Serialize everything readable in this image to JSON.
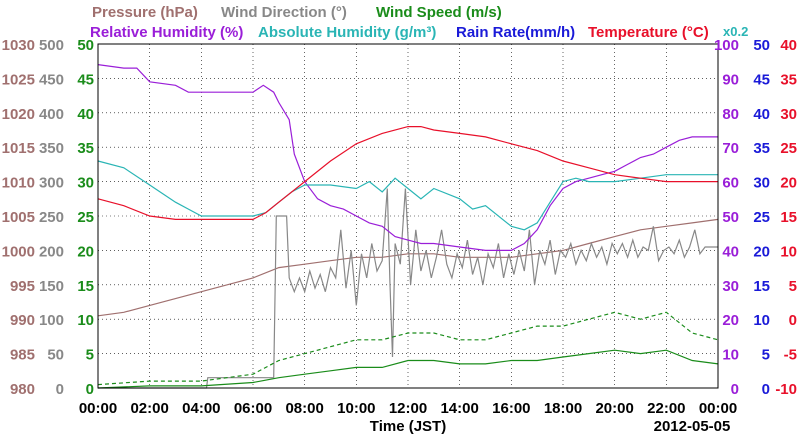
{
  "chart_data": {
    "type": "line",
    "legend": {
      "row1": [
        {
          "key": "pressure",
          "label": "Pressure (hPa)",
          "color": "#a0706f"
        },
        {
          "key": "wind_dir",
          "label": "Wind Direction (°)",
          "color": "#888888"
        },
        {
          "key": "wind_speed",
          "label": "Wind Speed (m/s)",
          "color": "#1a8c1a"
        }
      ],
      "row2": [
        {
          "key": "rel_hum",
          "label": "Relative Humidity (%)",
          "color": "#9a1ed8"
        },
        {
          "key": "abs_hum",
          "label": "Absolute Humidity (g/m³)",
          "color": "#2ab5b5"
        },
        {
          "key": "rain",
          "label": "Rain Rate(mm/h)",
          "color": "#1a1ad8"
        },
        {
          "key": "temp",
          "label": "Temperature (°C)",
          "color": "#e8102a"
        }
      ],
      "abs_hum_scale": "x0.2"
    },
    "xlabel": "Time (JST)",
    "date": "2012-05-05",
    "x_ticks": [
      "00:00",
      "02:00",
      "04:00",
      "06:00",
      "08:00",
      "10:00",
      "12:00",
      "14:00",
      "16:00",
      "18:00",
      "20:00",
      "22:00",
      "00:00"
    ],
    "xlim": [
      0,
      24
    ],
    "left_axes": [
      {
        "key": "pressure",
        "color": "#a0706f",
        "ticks": [
          980,
          985,
          990,
          995,
          1000,
          1005,
          1010,
          1015,
          1020,
          1025,
          1030
        ],
        "range": [
          980,
          1030
        ]
      },
      {
        "key": "wind_dir",
        "color": "#888888",
        "ticks": [
          0,
          50,
          100,
          150,
          200,
          250,
          300,
          350,
          400,
          450,
          500
        ],
        "range": [
          0,
          500
        ]
      },
      {
        "key": "wind_speed",
        "color": "#1a8c1a",
        "ticks": [
          0,
          5,
          10,
          15,
          20,
          25,
          30,
          35,
          40,
          45,
          50
        ],
        "range": [
          0,
          50
        ]
      }
    ],
    "right_axes": [
      {
        "key": "rel_hum",
        "color": "#9a1ed8",
        "ticks": [
          0,
          10,
          20,
          30,
          40,
          50,
          60,
          70,
          80,
          90,
          100
        ],
        "range": [
          0,
          100
        ]
      },
      {
        "key": "rain",
        "color": "#1a1ad8",
        "ticks": [
          0,
          5,
          10,
          15,
          20,
          25,
          30,
          35,
          40,
          45,
          50
        ],
        "range": [
          0,
          50
        ]
      },
      {
        "key": "temp",
        "color": "#e8102a",
        "ticks": [
          -10,
          -5,
          0,
          5,
          10,
          15,
          20,
          25,
          30,
          35,
          40
        ],
        "range": [
          -10,
          40
        ]
      }
    ],
    "series": [
      {
        "key": "pressure",
        "axis": "pressure",
        "values": [
          [
            0,
            990.5
          ],
          [
            1,
            991
          ],
          [
            2,
            992
          ],
          [
            3,
            993
          ],
          [
            4,
            994
          ],
          [
            5,
            995
          ],
          [
            6,
            996
          ],
          [
            7,
            997.5
          ],
          [
            8,
            998
          ],
          [
            9,
            998.5
          ],
          [
            10,
            999
          ],
          [
            11,
            999
          ],
          [
            12,
            999.5
          ],
          [
            13,
            999.5
          ],
          [
            14,
            999
          ],
          [
            15,
            999
          ],
          [
            16,
            999
          ],
          [
            17,
            999.5
          ],
          [
            18,
            1000
          ],
          [
            19,
            1001
          ],
          [
            20,
            1002
          ],
          [
            21,
            1003
          ],
          [
            22,
            1003.5
          ],
          [
            23,
            1004
          ],
          [
            24,
            1004.5
          ]
        ]
      },
      {
        "key": "wind_dir",
        "axis": "wind_dir",
        "values": [
          [
            0,
            0
          ],
          [
            4.2,
            0
          ],
          [
            4.25,
            15
          ],
          [
            5.5,
            15
          ],
          [
            6.8,
            15
          ],
          [
            6.9,
            250
          ],
          [
            7.3,
            250
          ],
          [
            7.4,
            160
          ],
          [
            7.6,
            140
          ],
          [
            7.8,
            160
          ],
          [
            8,
            140
          ],
          [
            8.2,
            170
          ],
          [
            8.4,
            145
          ],
          [
            8.6,
            165
          ],
          [
            8.8,
            140
          ],
          [
            9,
            175
          ],
          [
            9.2,
            160
          ],
          [
            9.4,
            230
          ],
          [
            9.6,
            145
          ],
          [
            9.8,
            200
          ],
          [
            10,
            120
          ],
          [
            10.2,
            195
          ],
          [
            10.4,
            160
          ],
          [
            10.6,
            210
          ],
          [
            10.8,
            170
          ],
          [
            11,
            185
          ],
          [
            11.2,
            290
          ],
          [
            11.3,
            155
          ],
          [
            11.4,
            45
          ],
          [
            11.5,
            210
          ],
          [
            11.7,
            180
          ],
          [
            11.9,
            290
          ],
          [
            12.1,
            150
          ],
          [
            12.3,
            230
          ],
          [
            12.5,
            170
          ],
          [
            12.7,
            200
          ],
          [
            12.9,
            160
          ],
          [
            13.1,
            190
          ],
          [
            13.3,
            230
          ],
          [
            13.5,
            180
          ],
          [
            13.7,
            160
          ],
          [
            13.9,
            195
          ],
          [
            14.1,
            175
          ],
          [
            14.3,
            215
          ],
          [
            14.5,
            165
          ],
          [
            14.7,
            190
          ],
          [
            14.9,
            150
          ],
          [
            15.1,
            195
          ],
          [
            15.3,
            175
          ],
          [
            15.5,
            210
          ],
          [
            15.7,
            160
          ],
          [
            15.9,
            195
          ],
          [
            16.1,
            165
          ],
          [
            16.3,
            200
          ],
          [
            16.5,
            170
          ],
          [
            16.7,
            230
          ],
          [
            16.9,
            150
          ],
          [
            17.1,
            200
          ],
          [
            17.3,
            180
          ],
          [
            17.5,
            215
          ],
          [
            17.7,
            165
          ],
          [
            17.9,
            200
          ],
          [
            18.1,
            190
          ],
          [
            18.3,
            210
          ],
          [
            18.5,
            180
          ],
          [
            18.7,
            200
          ],
          [
            18.9,
            185
          ],
          [
            19.1,
            210
          ],
          [
            19.3,
            190
          ],
          [
            19.5,
            205
          ],
          [
            19.7,
            180
          ],
          [
            19.9,
            210
          ],
          [
            20.1,
            195
          ],
          [
            20.3,
            210
          ],
          [
            20.5,
            190
          ],
          [
            20.7,
            215
          ],
          [
            20.9,
            190
          ],
          [
            21.1,
            205
          ],
          [
            21.3,
            200
          ],
          [
            21.5,
            235
          ],
          [
            21.7,
            185
          ],
          [
            21.9,
            200
          ],
          [
            22.1,
            205
          ],
          [
            22.3,
            195
          ],
          [
            22.5,
            215
          ],
          [
            22.7,
            190
          ],
          [
            22.9,
            205
          ],
          [
            23.1,
            230
          ],
          [
            23.3,
            195
          ],
          [
            23.5,
            205
          ],
          [
            24,
            205
          ]
        ]
      },
      {
        "key": "wind_speed_max",
        "axis": "wind_speed",
        "dashed": true,
        "values": [
          [
            0,
            0.5
          ],
          [
            2,
            1
          ],
          [
            4,
            1
          ],
          [
            6,
            2
          ],
          [
            7,
            4
          ],
          [
            8,
            5
          ],
          [
            9,
            6
          ],
          [
            10,
            7
          ],
          [
            11,
            7
          ],
          [
            12,
            8
          ],
          [
            13,
            8
          ],
          [
            14,
            7
          ],
          [
            15,
            7
          ],
          [
            16,
            8
          ],
          [
            17,
            9
          ],
          [
            18,
            9
          ],
          [
            19,
            10
          ],
          [
            20,
            11
          ],
          [
            21,
            10
          ],
          [
            22,
            11
          ],
          [
            23,
            8
          ],
          [
            24,
            7
          ]
        ]
      },
      {
        "key": "wind_speed",
        "axis": "wind_speed",
        "values": [
          [
            0,
            0
          ],
          [
            2,
            0.3
          ],
          [
            4,
            0.3
          ],
          [
            6,
            0.8
          ],
          [
            7,
            1.5
          ],
          [
            8,
            2
          ],
          [
            9,
            2.5
          ],
          [
            10,
            3
          ],
          [
            11,
            3
          ],
          [
            12,
            4
          ],
          [
            13,
            4
          ],
          [
            14,
            3.5
          ],
          [
            15,
            3.5
          ],
          [
            16,
            4
          ],
          [
            17,
            4
          ],
          [
            18,
            4.5
          ],
          [
            19,
            5
          ],
          [
            20,
            5.5
          ],
          [
            21,
            5
          ],
          [
            22,
            5.5
          ],
          [
            23,
            4
          ],
          [
            24,
            3.5
          ]
        ]
      },
      {
        "key": "rel_hum",
        "axis": "rel_hum",
        "values": [
          [
            0,
            94
          ],
          [
            1,
            93
          ],
          [
            1.5,
            93
          ],
          [
            2,
            89
          ],
          [
            3,
            88
          ],
          [
            3.5,
            86
          ],
          [
            4,
            86
          ],
          [
            5,
            86
          ],
          [
            6,
            86
          ],
          [
            6.4,
            88
          ],
          [
            6.8,
            86
          ],
          [
            7,
            83
          ],
          [
            7.4,
            78
          ],
          [
            7.6,
            68
          ],
          [
            8,
            60
          ],
          [
            8.5,
            55
          ],
          [
            9,
            53
          ],
          [
            9.5,
            52
          ],
          [
            10,
            50
          ],
          [
            10.5,
            48
          ],
          [
            11,
            47
          ],
          [
            11.5,
            44
          ],
          [
            12,
            43
          ],
          [
            12.5,
            42
          ],
          [
            13,
            42
          ],
          [
            14,
            41
          ],
          [
            15,
            40
          ],
          [
            16,
            40
          ],
          [
            16.5,
            42
          ],
          [
            17,
            46
          ],
          [
            17.5,
            53
          ],
          [
            18,
            58
          ],
          [
            18.5,
            60
          ],
          [
            19,
            61
          ],
          [
            19.5,
            62
          ],
          [
            20,
            63
          ],
          [
            20.5,
            65
          ],
          [
            21,
            67
          ],
          [
            21.5,
            68
          ],
          [
            22,
            70
          ],
          [
            22.5,
            72
          ],
          [
            23,
            73
          ],
          [
            24,
            73
          ]
        ]
      },
      {
        "key": "abs_hum",
        "axis": "rel_hum",
        "values": [
          [
            0,
            66
          ],
          [
            1,
            64
          ],
          [
            2,
            59
          ],
          [
            3,
            54
          ],
          [
            3.5,
            52
          ],
          [
            4,
            50
          ],
          [
            5,
            50
          ],
          [
            6,
            50
          ],
          [
            6.5,
            51
          ],
          [
            7,
            54
          ],
          [
            7.5,
            57
          ],
          [
            8,
            59
          ],
          [
            9,
            59
          ],
          [
            10,
            58
          ],
          [
            10.5,
            60
          ],
          [
            11,
            57
          ],
          [
            11.5,
            61
          ],
          [
            12,
            58
          ],
          [
            12.5,
            55
          ],
          [
            13,
            58
          ],
          [
            14,
            55
          ],
          [
            14.5,
            52
          ],
          [
            15,
            53
          ],
          [
            16,
            47
          ],
          [
            16.5,
            46
          ],
          [
            17,
            48
          ],
          [
            17.5,
            54
          ],
          [
            18,
            60
          ],
          [
            18.5,
            61
          ],
          [
            19,
            60
          ],
          [
            19.5,
            60
          ],
          [
            20,
            60
          ],
          [
            21,
            61
          ],
          [
            22,
            62
          ],
          [
            23,
            62
          ],
          [
            24,
            62
          ]
        ]
      },
      {
        "key": "temp",
        "axis": "temp",
        "values": [
          [
            0,
            17.5
          ],
          [
            1,
            16.5
          ],
          [
            2,
            15
          ],
          [
            3,
            14.5
          ],
          [
            4,
            14.5
          ],
          [
            5,
            14.5
          ],
          [
            6,
            14.5
          ],
          [
            6.5,
            15.5
          ],
          [
            7,
            17
          ],
          [
            8,
            20
          ],
          [
            9,
            23
          ],
          [
            10,
            25.5
          ],
          [
            11,
            27
          ],
          [
            12,
            28
          ],
          [
            12.5,
            28
          ],
          [
            13,
            27.5
          ],
          [
            14,
            27
          ],
          [
            15,
            26.5
          ],
          [
            16,
            25.5
          ],
          [
            17,
            24.5
          ],
          [
            18,
            23
          ],
          [
            19,
            22
          ],
          [
            20,
            21
          ],
          [
            21,
            20.5
          ],
          [
            22,
            20
          ],
          [
            23,
            20
          ],
          [
            24,
            20
          ]
        ]
      }
    ]
  }
}
